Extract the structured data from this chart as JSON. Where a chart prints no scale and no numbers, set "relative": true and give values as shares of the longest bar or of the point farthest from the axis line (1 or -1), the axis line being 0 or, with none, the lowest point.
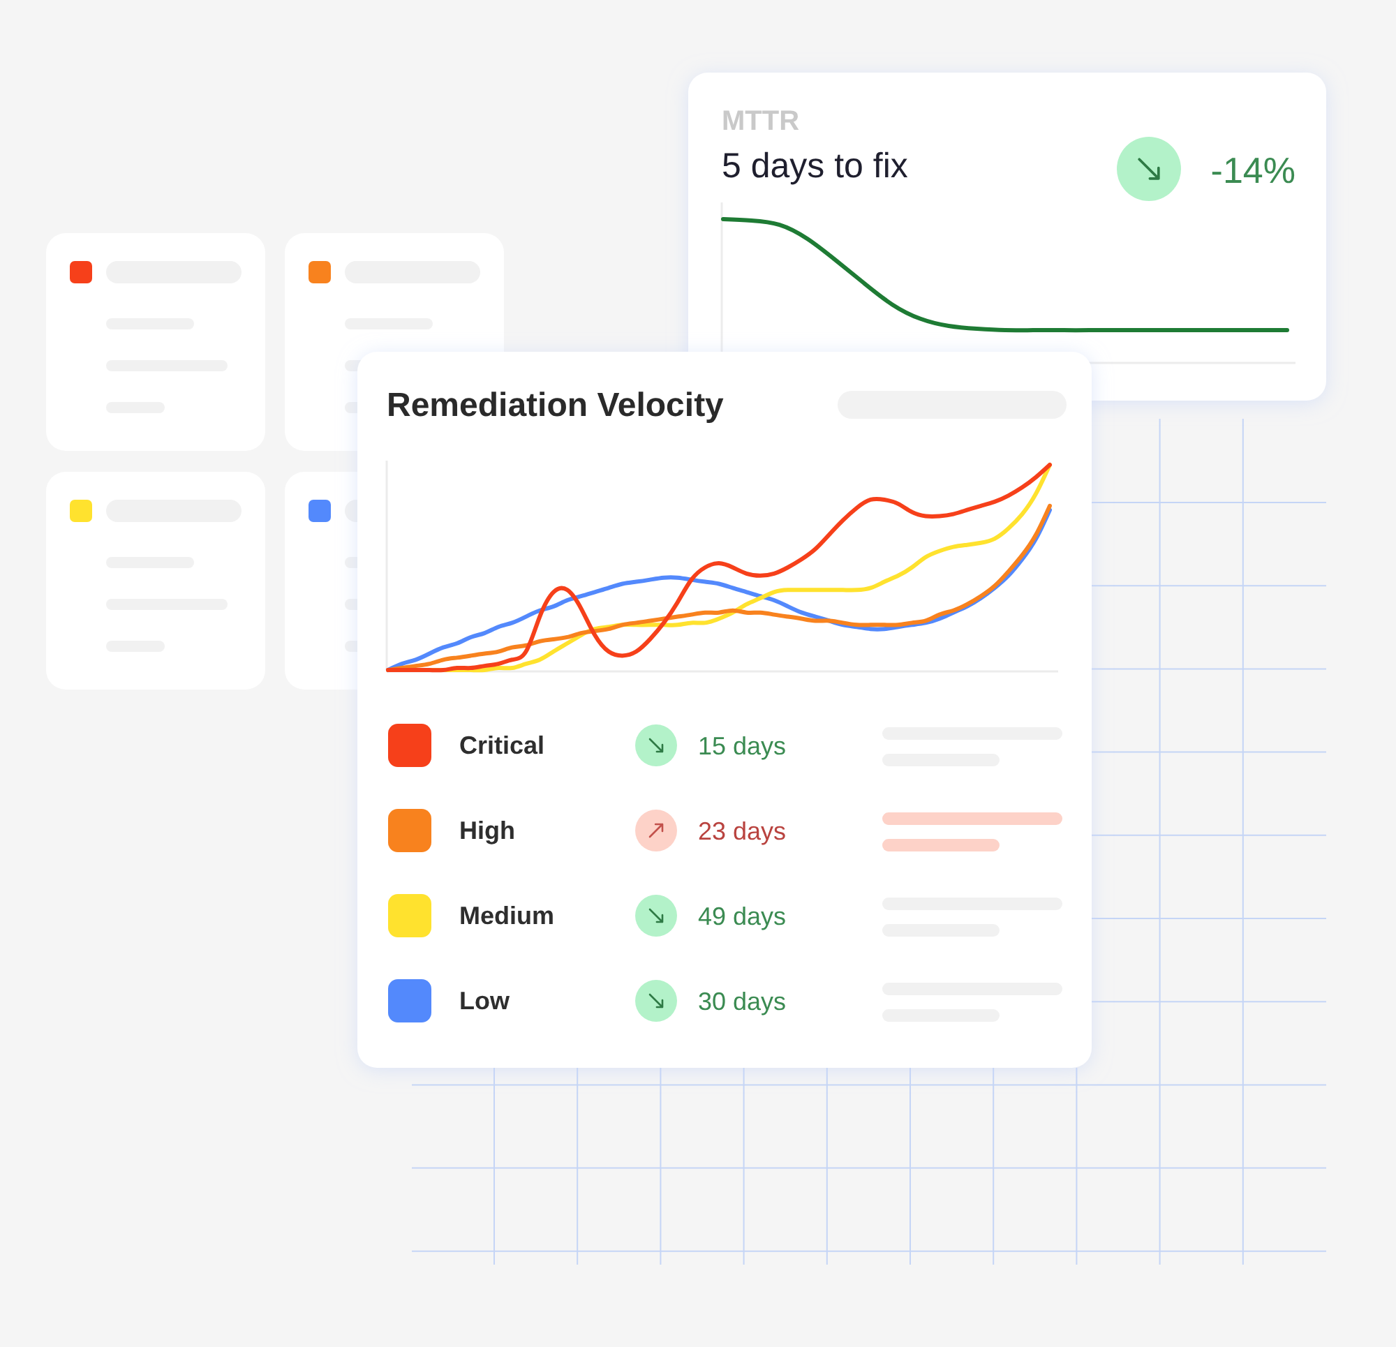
{
  "chart_data": [
    {
      "type": "line",
      "title": "MTTR",
      "subtitle": "5 days to fix",
      "annotations": [
        "-14%"
      ],
      "relative": true,
      "categories": [
        null,
        null,
        null,
        null,
        null,
        null,
        null,
        null,
        null,
        null,
        null,
        null,
        null,
        null,
        null,
        null,
        null,
        null,
        null,
        null,
        null
      ],
      "series": [
        {
          "color": "#1e7b34",
          "values": [
            1,
            0.99,
            0.96,
            0.86,
            0.71,
            0.55,
            0.4,
            0.3,
            0.25,
            0.23,
            0.22,
            0.22,
            0.22,
            0.22,
            0.22,
            0.22,
            0.22,
            0.22,
            0.22,
            0.22,
            0.22
          ]
        }
      ]
    },
    {
      "type": "line",
      "title": "Remediation Velocity",
      "annotations": [
        "15 days",
        "23 days",
        "49 days",
        "30 days"
      ],
      "relative": true,
      "legend": "bottom",
      "categories": [
        null,
        null,
        null,
        null,
        null,
        null,
        null,
        null,
        null,
        null,
        null,
        null,
        null,
        null,
        null,
        null,
        null,
        null,
        null,
        null,
        null,
        null,
        null,
        null,
        null,
        null,
        null,
        null,
        null,
        null,
        null,
        null,
        null,
        null,
        null,
        null,
        null,
        null,
        null,
        null,
        null,
        null,
        null,
        null,
        null,
        null,
        null,
        null,
        null
      ],
      "series": [
        {
          "name": "Critical",
          "color": "#f6401a",
          "values": [
            0,
            0,
            0,
            0,
            0,
            0.01,
            0.01,
            0.02,
            0.03,
            0.05,
            0.09,
            0.26,
            0.38,
            0.39,
            0.3,
            0.17,
            0.09,
            0.07,
            0.09,
            0.15,
            0.23,
            0.33,
            0.44,
            0.5,
            0.52,
            0.5,
            0.47,
            0.46,
            0.47,
            0.5,
            0.54,
            0.59,
            0.66,
            0.73,
            0.79,
            0.83,
            0.83,
            0.81,
            0.77,
            0.75,
            0.75,
            0.76,
            0.78,
            0.8,
            0.82,
            0.85,
            0.89,
            0.94,
            1
          ]
        },
        {
          "name": "High",
          "color": "#f8821e",
          "values": [
            0,
            0.01,
            0.02,
            0.03,
            0.05,
            0.06,
            0.07,
            0.08,
            0.09,
            0.11,
            0.12,
            0.14,
            0.15,
            0.16,
            0.18,
            0.19,
            0.2,
            0.22,
            0.23,
            0.24,
            0.25,
            0.26,
            0.27,
            0.28,
            0.28,
            0.29,
            0.28,
            0.28,
            0.27,
            0.26,
            0.25,
            0.24,
            0.24,
            0.23,
            0.22,
            0.22,
            0.22,
            0.22,
            0.23,
            0.24,
            0.27,
            0.29,
            0.32,
            0.36,
            0.41,
            0.48,
            0.56,
            0.66,
            0.8
          ]
        },
        {
          "name": "Medium",
          "color": "#ffe22e",
          "values": [
            null,
            null,
            null,
            0,
            0,
            0,
            0,
            0,
            0.01,
            0.01,
            0.03,
            0.05,
            0.09,
            0.13,
            0.17,
            0.2,
            0.21,
            0.22,
            0.22,
            0.22,
            0.22,
            0.22,
            0.23,
            0.23,
            0.25,
            0.28,
            0.32,
            0.35,
            0.38,
            0.39,
            0.39,
            0.39,
            0.39,
            0.39,
            0.39,
            0.4,
            0.43,
            0.46,
            0.5,
            0.55,
            0.58,
            0.6,
            0.61,
            0.62,
            0.64,
            0.69,
            0.76,
            0.86,
            1
          ]
        },
        {
          "name": "Low",
          "color": "#5389fc",
          "values": [
            0,
            0.03,
            0.05,
            0.08,
            0.11,
            0.13,
            0.16,
            0.18,
            0.21,
            0.23,
            0.26,
            0.29,
            0.31,
            0.34,
            0.36,
            0.38,
            0.4,
            0.42,
            0.43,
            0.44,
            0.45,
            0.45,
            0.44,
            0.43,
            0.42,
            0.4,
            0.38,
            0.36,
            0.34,
            0.31,
            0.28,
            0.26,
            0.24,
            0.22,
            0.21,
            0.2,
            0.2,
            0.21,
            0.22,
            0.23,
            0.25,
            0.28,
            0.31,
            0.35,
            0.4,
            0.46,
            0.54,
            0.64,
            0.78
          ]
        }
      ]
    }
  ]
}
